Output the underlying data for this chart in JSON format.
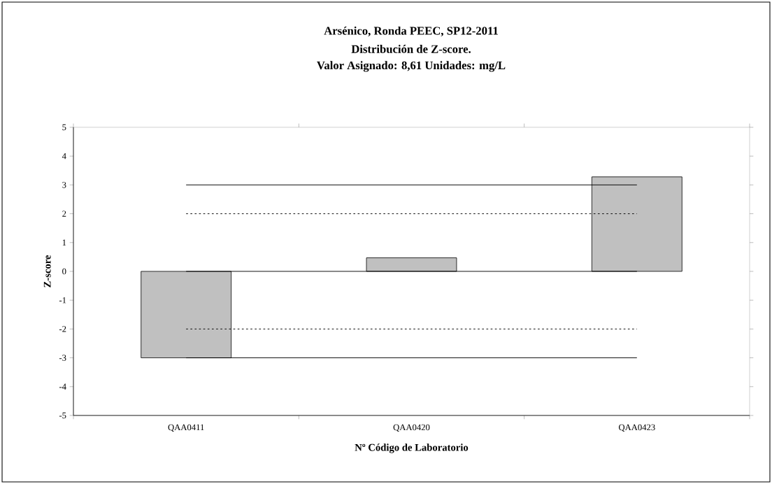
{
  "chart_data": {
    "type": "bar",
    "title": "Arsénico, Ronda PEEC, SP12-2011",
    "subtitle": "Distribución de Z-score.",
    "annotations": [
      "Valor Asignado: 8,61   Unidades: mg/L"
    ],
    "xlabel": "Nº Código de Laboratorio",
    "ylabel": "Z-score",
    "categories": [
      "QAA0411",
      "QAA0420",
      "QAA0423"
    ],
    "values": [
      -3.0,
      0.47,
      3.28
    ],
    "color": "#c0c0c0",
    "ylim": [
      -5,
      5
    ],
    "yticks": [
      -5,
      -4,
      -3,
      -2,
      -1,
      0,
      1,
      2,
      3,
      4,
      5
    ],
    "grid": false,
    "ref_lines": [
      {
        "axis": "y",
        "value": 3,
        "line_style": "solid",
        "color": "#000000"
      },
      {
        "axis": "y",
        "value": 2,
        "line_style": "dotted",
        "color": "#000000"
      },
      {
        "axis": "y",
        "value": 0,
        "line_style": "solid",
        "color": "#000000"
      },
      {
        "axis": "y",
        "value": -2,
        "line_style": "dotted",
        "color": "#000000"
      },
      {
        "axis": "y",
        "value": -3,
        "line_style": "solid",
        "color": "#000000"
      }
    ]
  }
}
